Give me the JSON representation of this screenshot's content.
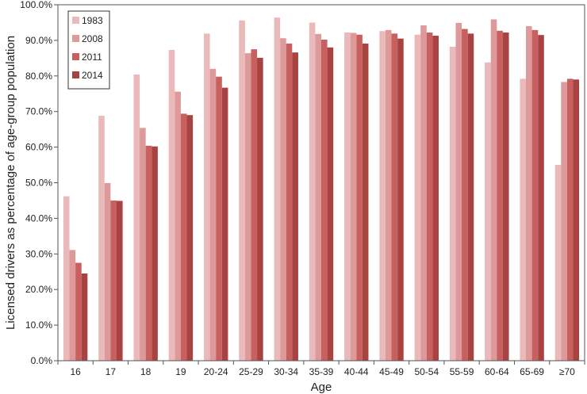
{
  "chart_data": {
    "type": "bar",
    "xlabel": "Age",
    "ylabel": "Licensed drivers as percentage of age-group population",
    "ylim": [
      0,
      100
    ],
    "yticks": [
      "0.0%",
      "10.0%",
      "20.0%",
      "30.0%",
      "40.0%",
      "50.0%",
      "60.0%",
      "70.0%",
      "80.0%",
      "90.0%",
      "100.0%"
    ],
    "categories": [
      "16",
      "17",
      "18",
      "19",
      "20-24",
      "25-29",
      "30-34",
      "35-39",
      "40-44",
      "45-49",
      "50-54",
      "55-59",
      "60-64",
      "65-69",
      "≥70"
    ],
    "series": [
      {
        "name": "1983",
        "color": "#eab9b9",
        "values": [
          46.2,
          68.8,
          80.4,
          87.3,
          91.9,
          95.6,
          96.4,
          95.0,
          92.2,
          92.6,
          91.6,
          88.2,
          83.8,
          79.2,
          55.0
        ]
      },
      {
        "name": "2008",
        "color": "#de9a9a",
        "values": [
          31.1,
          49.9,
          65.4,
          75.6,
          82.0,
          86.4,
          90.6,
          91.8,
          92.1,
          92.9,
          94.2,
          94.9,
          95.9,
          94.0,
          78.3
        ]
      },
      {
        "name": "2011",
        "color": "#c8605f",
        "values": [
          27.5,
          45.0,
          60.4,
          69.4,
          79.8,
          87.5,
          89.1,
          90.2,
          91.6,
          91.9,
          92.2,
          93.2,
          92.7,
          92.9,
          79.2
        ]
      },
      {
        "name": "2014",
        "color": "#a94342",
        "values": [
          24.5,
          44.9,
          60.2,
          69.0,
          76.7,
          85.1,
          86.6,
          88.0,
          89.1,
          90.5,
          91.3,
          91.9,
          92.2,
          91.5,
          79.0
        ]
      }
    ],
    "grid": false,
    "legend": "top-left"
  }
}
